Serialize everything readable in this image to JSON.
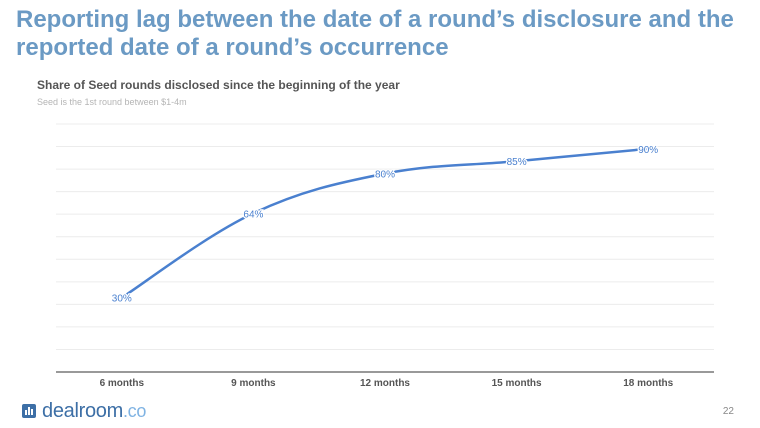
{
  "slide": {
    "title": "Reporting lag between the date of a round’s disclosure and the reported date of a round’s occurrence",
    "page_number": "22"
  },
  "footer": {
    "brand": "dealroom",
    "brand_suffix": ".co"
  },
  "chart_data": {
    "type": "line",
    "title": "Share of Seed rounds disclosed since the beginning of the year",
    "subtitle": "Seed is the 1st round between $1-4m",
    "categories": [
      "6 months",
      "9 months",
      "12 months",
      "15 months",
      "18 months"
    ],
    "values": [
      30,
      64,
      80,
      85,
      90
    ],
    "data_labels": [
      "30%",
      "64%",
      "80%",
      "85%",
      "90%"
    ],
    "ylim": [
      0,
      100
    ],
    "grid": true,
    "legend": false,
    "series_color": "#4a80cf"
  }
}
